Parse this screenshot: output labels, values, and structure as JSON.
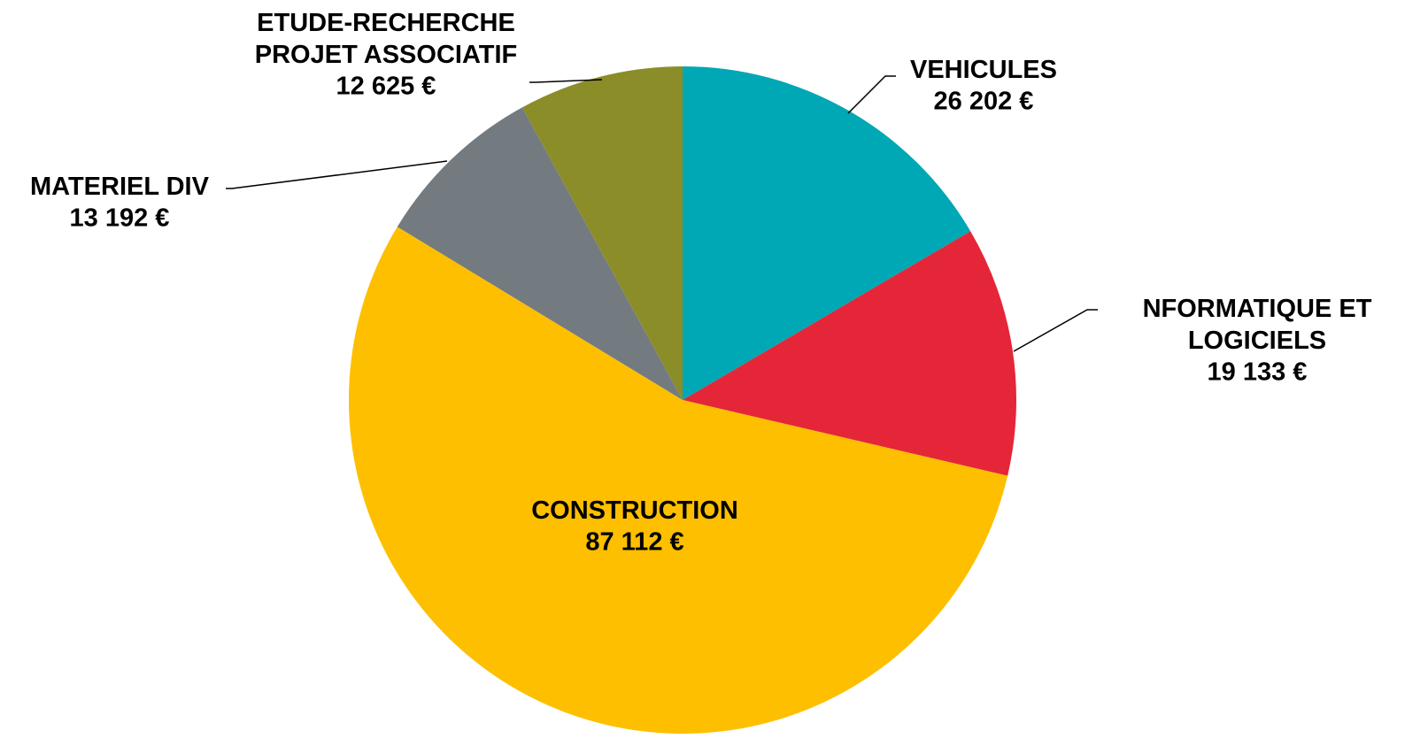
{
  "chart_data": {
    "type": "pie",
    "categories": [
      "VEHICULES",
      "NFORMATIQUE ET\nLOGICIELS",
      "CONSTRUCTION",
      "MATERIEL DIV",
      "ETUDE-RECHERCHE\nPROJET ASSOCIATIF"
    ],
    "values": [
      26202,
      19133,
      87112,
      13192,
      12625
    ],
    "value_labels": [
      "26 202 €",
      "19 133 €",
      "87 112 €",
      "13 192 €",
      "12 625 €"
    ],
    "colors": [
      "#00a7b5",
      "#e52638",
      "#fdbf00",
      "#737b80",
      "#8b8d28"
    ]
  }
}
